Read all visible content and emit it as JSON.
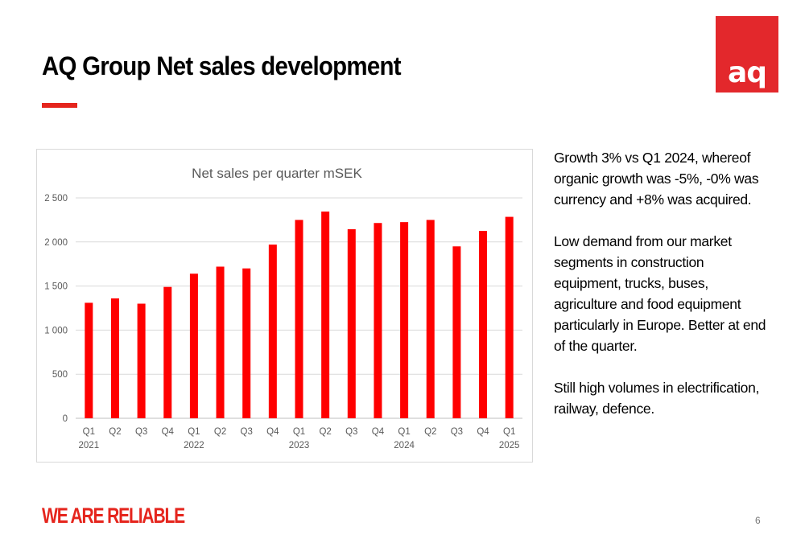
{
  "slide": {
    "title": "AQ Group Net sales development",
    "logo_text": "aq",
    "tagline": "WE ARE RELIABLE",
    "page_number": "6",
    "accent_color": "#e5251d"
  },
  "commentary": [
    "Growth 3% vs Q1 2024, whereof organic growth was -5%, -0% was currency and +8% was acquired.",
    "Low demand from our market segments in construction equipment, trucks, buses, agriculture and food equipment particularly in Europe. Better at end of the quarter.",
    "Still high volumes in electrification, railway, defence."
  ],
  "chart_data": {
    "type": "bar",
    "title": "Net sales per quarter mSEK",
    "categories": [
      "Q1",
      "Q2",
      "Q3",
      "Q4",
      "Q1",
      "Q2",
      "Q3",
      "Q4",
      "Q1",
      "Q2",
      "Q3",
      "Q4",
      "Q1",
      "Q2",
      "Q3",
      "Q4",
      "Q1"
    ],
    "year_labels": [
      "2021",
      "",
      "",
      "",
      "2022",
      "",
      "",
      "",
      "2023",
      "",
      "",
      "",
      "2024",
      "",
      "",
      "",
      "2025"
    ],
    "values": [
      1310,
      1360,
      1300,
      1490,
      1640,
      1720,
      1700,
      1970,
      2250,
      2345,
      2145,
      2215,
      2225,
      2250,
      1950,
      2125,
      2285
    ],
    "ylim": [
      0,
      2500
    ],
    "yticks": [
      0,
      500,
      1000,
      1500,
      2000,
      2500
    ],
    "ytick_labels": [
      "0",
      "500",
      "1 000",
      "1 500",
      "2 000",
      "2 500"
    ],
    "bar_color": "#ff0000",
    "grid": true,
    "legend": "none"
  }
}
